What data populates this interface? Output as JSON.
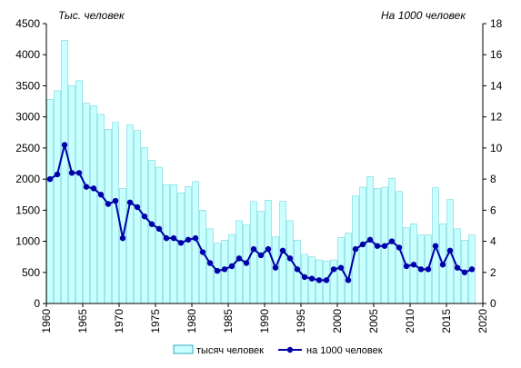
{
  "chart_data": {
    "type": "bar",
    "title": "",
    "left_axis_unit": "Тыс. человек",
    "right_axis_unit": "На 1000 человек",
    "x": [
      1960,
      1961,
      1962,
      1963,
      1964,
      1965,
      1966,
      1967,
      1968,
      1969,
      1970,
      1971,
      1972,
      1973,
      1974,
      1975,
      1976,
      1977,
      1978,
      1979,
      1980,
      1981,
      1982,
      1983,
      1984,
      1985,
      1986,
      1987,
      1988,
      1989,
      1990,
      1991,
      1992,
      1993,
      1994,
      1995,
      1996,
      1997,
      1998,
      1999,
      2000,
      2001,
      2002,
      2003,
      2004,
      2005,
      2006,
      2007,
      2008,
      2009,
      2010,
      2011,
      2012,
      2013,
      2014,
      2015,
      2016,
      2017,
      2018
    ],
    "xlim": [
      1960,
      2020
    ],
    "x_ticks": [
      1960,
      1965,
      1970,
      1975,
      1980,
      1985,
      1990,
      1995,
      2000,
      2005,
      2010,
      2015,
      2020
    ],
    "left_axis": {
      "ylim": [
        0,
        4500
      ],
      "ticks": [
        0,
        500,
        1000,
        1500,
        2000,
        2500,
        3000,
        3500,
        4000,
        4500
      ]
    },
    "right_axis": {
      "ylim": [
        0,
        18
      ],
      "ticks": [
        0,
        2,
        4,
        6,
        8,
        10,
        12,
        14,
        16,
        18
      ]
    },
    "grid": false,
    "legend_position": "bottom",
    "series": [
      {
        "name": "тысяч человек",
        "type": "bar",
        "axis": "left",
        "color": "#c8ffff",
        "values": [
          3280,
          3420,
          4230,
          3500,
          3580,
          3220,
          3180,
          3040,
          2800,
          2910,
          1850,
          2870,
          2780,
          2510,
          2300,
          2190,
          1910,
          1910,
          1780,
          1880,
          1960,
          1500,
          1200,
          970,
          1020,
          1110,
          1330,
          1260,
          1640,
          1480,
          1660,
          1070,
          1640,
          1330,
          1020,
          790,
          750,
          700,
          680,
          700,
          1060,
          1130,
          1730,
          1870,
          2040,
          1850,
          1870,
          2010,
          1800,
          1220,
          1280,
          1100,
          1100,
          1860,
          1280,
          1670,
          1200,
          1020,
          1100
        ]
      },
      {
        "name": "на 1000 человек",
        "type": "line",
        "axis": "right",
        "color": "#0000aa",
        "values": [
          8.0,
          8.3,
          10.2,
          8.4,
          8.4,
          7.5,
          7.4,
          7.0,
          6.4,
          6.6,
          4.2,
          6.5,
          6.2,
          5.6,
          5.1,
          4.8,
          4.2,
          4.2,
          3.9,
          4.1,
          4.2,
          3.3,
          2.6,
          2.1,
          2.2,
          2.4,
          2.9,
          2.6,
          3.5,
          3.1,
          3.5,
          2.3,
          3.4,
          2.9,
          2.2,
          1.7,
          1.6,
          1.5,
          1.5,
          2.2,
          2.3,
          1.5,
          3.5,
          3.8,
          4.1,
          3.7,
          3.7,
          4.0,
          3.6,
          2.4,
          2.5,
          2.2,
          2.2,
          3.7,
          2.5,
          3.4,
          2.3,
          2.0,
          2.2
        ]
      }
    ]
  }
}
